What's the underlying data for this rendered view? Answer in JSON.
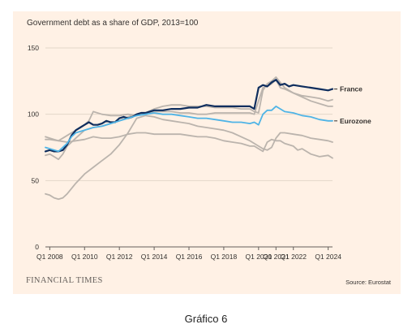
{
  "caption": "Gráfico 6",
  "brand": "FINANCIAL TIMES",
  "source": "Source: Eurostat",
  "chart_data": {
    "type": "line",
    "title": "Government debt as a share of GDP, 2013=100",
    "xlabel": "",
    "ylabel": "",
    "ylim": [
      0,
      150
    ],
    "yticks": [
      0,
      50,
      100,
      150
    ],
    "xlim": [
      2007.75,
      2024.25
    ],
    "xticks": [
      {
        "x": 2008.0,
        "label": "Q1 2008"
      },
      {
        "x": 2010.0,
        "label": "Q1 2010"
      },
      {
        "x": 2012.0,
        "label": "Q1 2012"
      },
      {
        "x": 2014.0,
        "label": "Q1 2014"
      },
      {
        "x": 2016.0,
        "label": "Q1 2016"
      },
      {
        "x": 2018.0,
        "label": "Q1 2018"
      },
      {
        "x": 2020.0,
        "label": "Q1 2020"
      },
      {
        "x": 2021.0,
        "label": "Q1 2021"
      },
      {
        "x": 2022.0,
        "label": "Q1 2022"
      },
      {
        "x": 2024.0,
        "label": "Q1 2024"
      }
    ],
    "grid": true,
    "series": [
      {
        "name": "France",
        "color": "#0f2e5e",
        "emphasis": true,
        "label": "France",
        "x": [
          2007.75,
          2008.0,
          2008.25,
          2008.5,
          2008.75,
          2009.0,
          2009.25,
          2009.5,
          2009.75,
          2010.0,
          2010.25,
          2010.5,
          2010.75,
          2011.0,
          2011.25,
          2011.5,
          2011.75,
          2012.0,
          2012.25,
          2012.5,
          2012.75,
          2013.0,
          2013.25,
          2013.5,
          2013.75,
          2014.0,
          2014.5,
          2015.0,
          2015.5,
          2016.0,
          2016.5,
          2017.0,
          2017.5,
          2018.0,
          2018.5,
          2019.0,
          2019.5,
          2019.75,
          2020.0,
          2020.25,
          2020.5,
          2020.75,
          2021.0,
          2021.25,
          2021.5,
          2021.75,
          2022.0,
          2022.5,
          2023.0,
          2023.5,
          2024.0,
          2024.25
        ],
        "y": [
          72,
          73,
          72,
          72,
          73,
          77,
          84,
          88,
          90,
          92,
          94,
          92,
          92,
          93,
          95,
          94,
          94,
          97,
          98,
          97,
          98,
          100,
          101,
          101,
          102,
          103,
          103,
          104,
          104,
          105,
          105,
          107,
          106,
          106,
          106,
          106,
          106,
          104,
          120,
          122,
          121,
          124,
          126,
          122,
          123,
          121,
          122,
          121,
          120,
          119,
          118,
          119
        ]
      },
      {
        "name": "Eurozone",
        "color": "#4fb4e6",
        "emphasis": true,
        "label": "Eurozone",
        "x": [
          2007.75,
          2008.0,
          2008.5,
          2009.0,
          2009.25,
          2009.5,
          2010.0,
          2010.5,
          2011.0,
          2011.5,
          2012.0,
          2012.5,
          2013.0,
          2013.5,
          2014.0,
          2014.5,
          2015.0,
          2015.5,
          2016.0,
          2016.5,
          2017.0,
          2017.5,
          2018.0,
          2018.5,
          2019.0,
          2019.5,
          2019.75,
          2020.0,
          2020.25,
          2020.5,
          2020.75,
          2021.0,
          2021.25,
          2021.5,
          2022.0,
          2022.5,
          2023.0,
          2023.5,
          2024.0,
          2024.25
        ],
        "y": [
          75,
          74,
          72,
          78,
          83,
          86,
          88,
          90,
          91,
          93,
          95,
          97,
          99,
          100,
          101,
          100,
          100,
          99,
          98,
          97,
          97,
          96,
          95,
          94,
          94,
          93,
          94,
          92,
          100,
          103,
          103,
          106,
          104,
          102,
          101,
          99,
          98,
          96,
          95,
          95
        ]
      },
      {
        "name": "",
        "color": "#bbb4ad",
        "x": [
          2007.75,
          2008.0,
          2008.5,
          2009.0,
          2009.5,
          2010.0,
          2010.25,
          2010.5,
          2011.0,
          2011.5,
          2012.0,
          2012.5,
          2013.0,
          2013.5,
          2014.0,
          2014.5,
          2015.0,
          2015.5,
          2016.0,
          2016.5,
          2017.0,
          2017.5,
          2018.0,
          2018.5,
          2019.0,
          2019.5,
          2019.75,
          2020.0,
          2020.25,
          2020.5,
          2020.75,
          2021.0,
          2021.25,
          2021.5,
          2022.0,
          2022.5,
          2023.0,
          2023.5,
          2024.0,
          2024.25
        ],
        "y": [
          83,
          82,
          80,
          84,
          88,
          92,
          95,
          102,
          100,
          99,
          99,
          100,
          99,
          101,
          104,
          106,
          107,
          107,
          106,
          106,
          106,
          105,
          105,
          105,
          104,
          104,
          102,
          101,
          118,
          123,
          125,
          128,
          124,
          120,
          116,
          113,
          110,
          108,
          106,
          106
        ]
      },
      {
        "name": "",
        "color": "#bbb4ad",
        "x": [
          2007.75,
          2008.0,
          2008.25,
          2008.5,
          2008.75,
          2009.0,
          2009.5,
          2010.0,
          2010.5,
          2011.0,
          2011.5,
          2012.0,
          2012.5,
          2013.0,
          2013.5,
          2014.0,
          2014.5,
          2015.0,
          2015.5,
          2016.0,
          2016.5,
          2017.0,
          2017.5,
          2018.0,
          2018.5,
          2019.0,
          2019.5,
          2019.75,
          2020.0,
          2020.25,
          2020.5,
          2020.75,
          2021.0,
          2021.25,
          2021.5,
          2022.0,
          2022.5,
          2023.0,
          2023.5,
          2024.0,
          2024.25
        ],
        "y": [
          69,
          70,
          68,
          66,
          70,
          76,
          82,
          88,
          90,
          91,
          93,
          95,
          98,
          100,
          101,
          102,
          102,
          102,
          101,
          101,
          100,
          100,
          101,
          101,
          101,
          101,
          101,
          100,
          110,
          120,
          121,
          123,
          126,
          120,
          119,
          116,
          114,
          113,
          112,
          110,
          111
        ]
      },
      {
        "name": "",
        "color": "#bbb4ad",
        "x": [
          2007.75,
          2008.0,
          2008.25,
          2008.5,
          2008.75,
          2009.0,
          2009.5,
          2010.0,
          2010.5,
          2011.0,
          2011.5,
          2012.0,
          2012.5,
          2013.0,
          2013.5,
          2014.0,
          2014.5,
          2015.0,
          2015.5,
          2016.0,
          2016.5,
          2017.0,
          2017.5,
          2018.0,
          2018.5,
          2019.0,
          2019.5,
          2019.75,
          2020.0,
          2020.25,
          2020.5,
          2020.75,
          2021.0,
          2021.25,
          2021.5,
          2022.0,
          2022.5,
          2023.0,
          2023.5,
          2024.0,
          2024.25
        ],
        "y": [
          40,
          39,
          37,
          36,
          37,
          40,
          48,
          55,
          60,
          65,
          70,
          77,
          86,
          97,
          99,
          98,
          96,
          95,
          94,
          93,
          91,
          90,
          89,
          88,
          86,
          83,
          80,
          78,
          76,
          74,
          73,
          75,
          82,
          86,
          86,
          85,
          84,
          82,
          81,
          80,
          79
        ]
      },
      {
        "name": "",
        "color": "#bbb4ad",
        "x": [
          2007.75,
          2008.0,
          2008.5,
          2009.0,
          2009.5,
          2010.0,
          2010.5,
          2011.0,
          2011.5,
          2012.0,
          2012.5,
          2013.0,
          2013.5,
          2014.0,
          2014.5,
          2015.0,
          2015.5,
          2016.0,
          2016.5,
          2017.0,
          2017.5,
          2018.0,
          2018.5,
          2019.0,
          2019.5,
          2019.75,
          2020.0,
          2020.25,
          2020.5,
          2020.75,
          2021.0,
          2021.25,
          2021.5,
          2022.0,
          2022.25,
          2022.5,
          2023.0,
          2023.5,
          2024.0,
          2024.25
        ],
        "y": [
          81,
          81,
          80,
          79,
          80,
          81,
          83,
          82,
          82,
          83,
          85,
          86,
          86,
          85,
          85,
          85,
          85,
          84,
          83,
          83,
          82,
          80,
          79,
          78,
          76,
          76,
          74,
          72,
          79,
          81,
          80,
          80,
          78,
          76,
          73,
          74,
          70,
          68,
          69,
          67
        ]
      }
    ]
  }
}
